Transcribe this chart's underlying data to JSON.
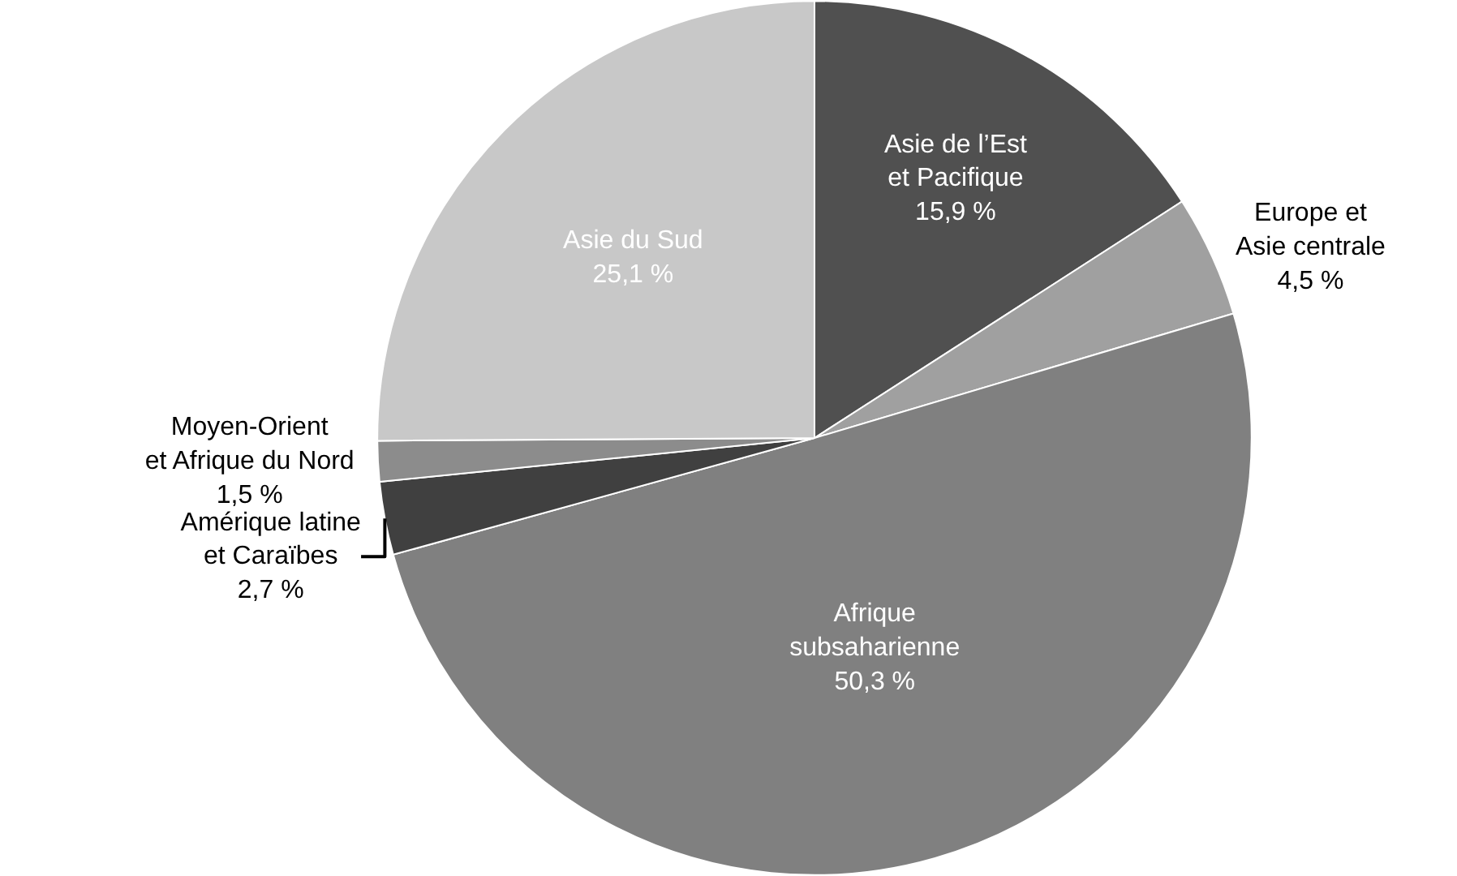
{
  "chart_data": {
    "type": "pie",
    "categories": [
      "Asie de l’Est\net Pacifique",
      "Europe et\nAsie centrale",
      "Afrique\nsubsaharienne",
      "Amérique latine\net Caraïbes",
      "Moyen-Orient\net Afrique du Nord",
      "Asie du Sud"
    ],
    "values": [
      15.9,
      4.5,
      50.3,
      2.7,
      1.5,
      25.1
    ],
    "value_labels": [
      "15,9 %",
      "4,5 %",
      "50,3 %",
      "2,7 %",
      "1,5 %",
      "25,1 %"
    ],
    "colors": [
      "#505050",
      "#a0a0a0",
      "#808080",
      "#404040",
      "#8c8c8c",
      "#c8c8c8"
    ],
    "legend": false
  }
}
